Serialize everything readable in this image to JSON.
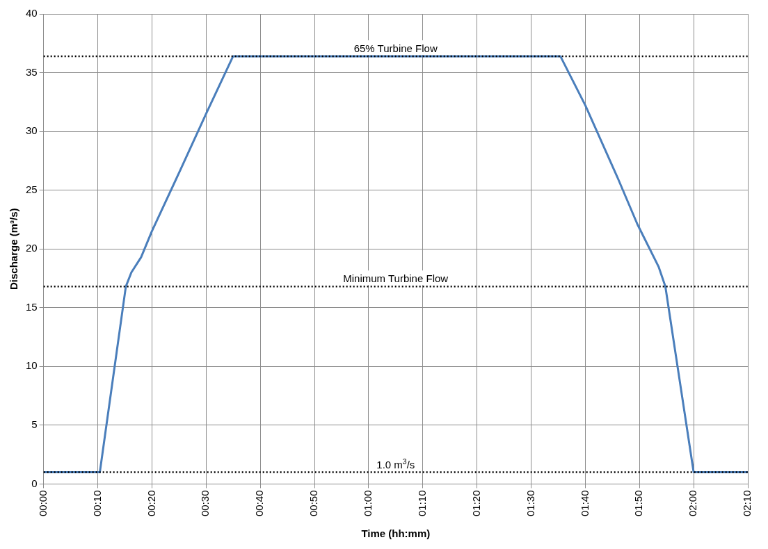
{
  "chart_data": {
    "type": "line",
    "xlabel": "Time (hh:mm)",
    "ylabel": "Discharge (m³/s)",
    "x": [
      0,
      0.173,
      0.253,
      0.27,
      0.3,
      0.333,
      0.417,
      0.5,
      0.583,
      1.59,
      1.667,
      1.767,
      1.827,
      1.892,
      1.913,
      2,
      2.1667
    ],
    "series": [
      {
        "color": "#4a7ebb",
        "values": [
          1,
          1,
          16.8,
          18,
          19.3,
          21.5,
          26.5,
          31.5,
          36.4,
          36.4,
          32.2,
          26,
          22.1,
          18.5,
          16.8,
          1,
          1
        ]
      }
    ],
    "xlim": [
      0,
      2.1667
    ],
    "xticks": [
      {
        "value": 0,
        "label": "00:00"
      },
      {
        "value": 0.1667,
        "label": "00:10"
      },
      {
        "value": 0.3333,
        "label": "00:20"
      },
      {
        "value": 0.5,
        "label": "00:30"
      },
      {
        "value": 0.6667,
        "label": "00:40"
      },
      {
        "value": 0.8333,
        "label": "00:50"
      },
      {
        "value": 1,
        "label": "01:00"
      },
      {
        "value": 1.1667,
        "label": "01:10"
      },
      {
        "value": 1.3333,
        "label": "01:20"
      },
      {
        "value": 1.5,
        "label": "01:30"
      },
      {
        "value": 1.6667,
        "label": "01:40"
      },
      {
        "value": 1.8333,
        "label": "01:50"
      },
      {
        "value": 2,
        "label": "02:00"
      },
      {
        "value": 2.1667,
        "label": "02:10"
      }
    ],
    "ylim": [
      0,
      40
    ],
    "yticks": [
      0,
      5,
      10,
      15,
      20,
      25,
      30,
      35,
      40
    ],
    "ref_lines": [
      {
        "axis": "y",
        "value": 36.4,
        "label": "65% Turbine Flow",
        "color": "#000000",
        "line_style": "dotted"
      },
      {
        "axis": "y",
        "value": 16.8,
        "label": "Minimum Turbine Flow",
        "color": "#000000",
        "line_style": "dotted"
      },
      {
        "axis": "y",
        "value": 1,
        "label": "1.0 m$^{3}$/s",
        "color": "#000000",
        "line_style": "dotted"
      }
    ],
    "grid": true,
    "legend": false,
    "marker": "none",
    "line_style": "solid"
  }
}
